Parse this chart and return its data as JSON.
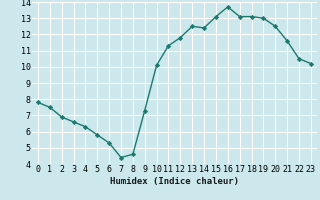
{
  "x": [
    0,
    1,
    2,
    3,
    4,
    5,
    6,
    7,
    8,
    9,
    10,
    11,
    12,
    13,
    14,
    15,
    16,
    17,
    18,
    19,
    20,
    21,
    22,
    23
  ],
  "y": [
    7.8,
    7.5,
    6.9,
    6.6,
    6.3,
    5.8,
    5.3,
    4.4,
    4.6,
    7.3,
    10.1,
    11.3,
    11.8,
    12.5,
    12.4,
    13.1,
    13.7,
    13.1,
    13.1,
    13.0,
    12.5,
    11.6,
    10.5,
    10.2
  ],
  "line_color": "#1a7a6e",
  "marker": "D",
  "marker_size": 2.2,
  "bg_color": "#cce8ec",
  "grid_color": "#ffffff",
  "xlabel": "Humidex (Indice chaleur)",
  "ylim": [
    4,
    14
  ],
  "xlim": [
    -0.5,
    23.5
  ],
  "yticks": [
    4,
    5,
    6,
    7,
    8,
    9,
    10,
    11,
    12,
    13,
    14
  ],
  "xticks": [
    0,
    1,
    2,
    3,
    4,
    5,
    6,
    7,
    8,
    9,
    10,
    11,
    12,
    13,
    14,
    15,
    16,
    17,
    18,
    19,
    20,
    21,
    22,
    23
  ],
  "xlabel_fontsize": 6.5,
  "tick_fontsize": 6.0,
  "linewidth": 1.0
}
